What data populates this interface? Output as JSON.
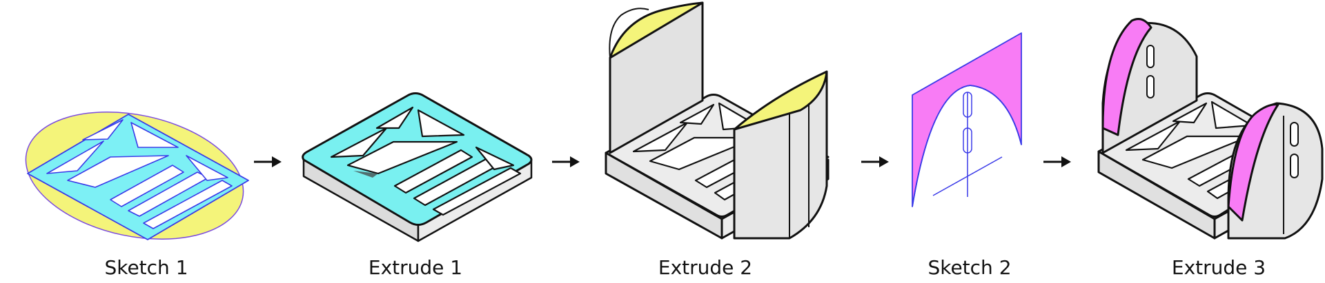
{
  "steps": [
    {
      "label": "Sketch 1"
    },
    {
      "label": "Extrude 1"
    },
    {
      "label": "Extrude 2"
    },
    {
      "label": "Sketch 2"
    },
    {
      "label": "Extrude 3"
    }
  ],
  "colors": {
    "sketch_fill": "#7df0f5",
    "sketch_stroke": "#3a3ae8",
    "profile_yellow": "#f4f47a",
    "extrude_cyan": "#79f0f0",
    "body_gray": "#e4e4e4",
    "body_light": "#f0f0f0",
    "profile_magenta": "#f87cf5",
    "outline": "#111111"
  },
  "icons": [
    "arrow-right-icon"
  ]
}
